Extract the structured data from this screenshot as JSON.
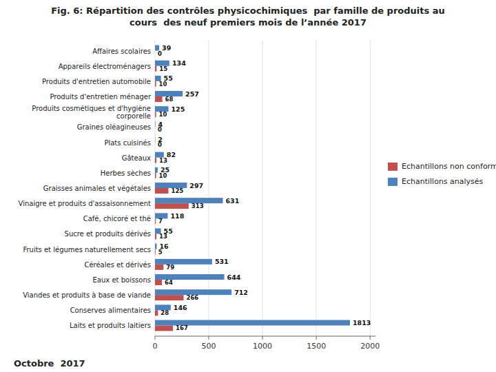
{
  "chart_data": {
    "type": "bar",
    "orientation": "horizontal",
    "title": "Fig. 6: Répartition des contrôles physicochimiques  par famille de produits au\ncours  des neuf premiers mois de l’année 2017",
    "categories": [
      "Laits et produits laitiers",
      "Conserves alimentaires",
      "Viandes et produits à base de viande",
      "Eaux et boissons",
      "Céréales et dérivés",
      "Fruits et légumes naturellement secs",
      "Sucre et produits dérivés",
      "Café, chicoré et thé",
      "Vinaigre et produits d'assaisonnement",
      "Graisses animales et végétales",
      "Herbes sèches",
      "Gâteaux",
      "Plats cuisinés",
      "Graines oléagineuses",
      "Produits cosmétiques et d'hygiène\ncorporelle",
      "Produits d'entretien ménager",
      "Produits d'entretien automobile",
      "Appareils électroménagers",
      "Affaires scolaires"
    ],
    "series": [
      {
        "name": "Echantillons non conformes",
        "color": "#c0504d",
        "values": [
          167,
          28,
          266,
          64,
          79,
          5,
          13,
          7,
          313,
          125,
          10,
          13,
          0,
          0,
          10,
          68,
          10,
          15,
          0
        ]
      },
      {
        "name": "Echantillons analysés",
        "color": "#4f81bd",
        "values": [
          1813,
          146,
          712,
          644,
          531,
          16,
          55,
          118,
          631,
          297,
          25,
          82,
          2,
          4,
          125,
          257,
          55,
          134,
          39
        ]
      }
    ],
    "xlim": [
      0,
      2050
    ],
    "xticks": [
      0,
      500,
      1000,
      1500,
      2000
    ],
    "grid": true,
    "legend": "right",
    "data_labels": true,
    "annotations": [
      "Octobre  2017"
    ]
  }
}
